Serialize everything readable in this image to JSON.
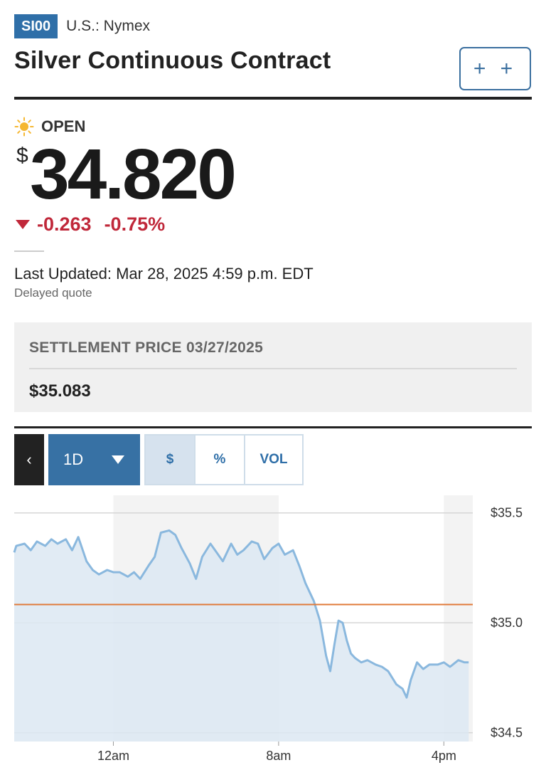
{
  "header": {
    "ticker": "SI00",
    "exchange": "U.S.: Nymex",
    "title": "Silver Continuous Contract",
    "watch_label": "+ +"
  },
  "quote": {
    "status": "OPEN",
    "status_icon": "sun-icon",
    "currency_symbol": "$",
    "price": "34.820",
    "change": "-0.263",
    "change_percent": "-0.75%",
    "change_direction": "down",
    "last_updated": "Last Updated: Mar 28, 2025 4:59 p.m. EDT",
    "delay_note": "Delayed quote"
  },
  "settlement": {
    "label": "SETTLEMENT PRICE 03/27/2025",
    "value": "$35.083"
  },
  "chart_controls": {
    "back_label": "‹",
    "range_label": "1D",
    "modes": [
      {
        "label": "$",
        "active": true
      },
      {
        "label": "%",
        "active": false
      },
      {
        "label": "VOL",
        "active": false
      }
    ]
  },
  "colors": {
    "accent": "#2f6fa8",
    "down": "#c0283a",
    "line": "#8ab8de",
    "area": "#dce8f2",
    "settlement_line": "#e07a3a"
  },
  "chart_data": {
    "type": "area",
    "title": "",
    "xlabel": "",
    "ylabel": "",
    "x_tick_labels": [
      "12am",
      "8am",
      "4pm"
    ],
    "y_tick_labels": [
      "$35.5",
      "$35.0",
      "$34.5"
    ],
    "ylim": [
      34.46,
      35.58
    ],
    "xlim_hours": [
      -4.8,
      17.4
    ],
    "settlement_reference": 35.083,
    "grid": "horizontal",
    "shaded_session_hours": [
      [
        0,
        8
      ],
      [
        16,
        17.4
      ]
    ],
    "series": [
      {
        "x_hours": [
          -5.0,
          -4.7,
          -4.3,
          -4.0,
          -3.7,
          -3.3,
          -3.0,
          -2.7,
          -2.3,
          -2.0,
          -1.7,
          -1.3,
          -1.0,
          -0.7,
          -0.3,
          0.0,
          0.3,
          0.7,
          1.0,
          1.3,
          1.7,
          2.0,
          2.3,
          2.7,
          3.0,
          3.3,
          3.7,
          4.0,
          4.3,
          4.7,
          5.0,
          5.3,
          5.7,
          6.0,
          6.3,
          6.7,
          7.0,
          7.3,
          7.7,
          8.0,
          8.3,
          8.7,
          9.0,
          9.3,
          9.7,
          10.0,
          10.3,
          10.5,
          10.7,
          10.9,
          11.1,
          11.3,
          11.5,
          11.7,
          12.0,
          12.3,
          12.7,
          13.0,
          13.3,
          13.7,
          14.0,
          14.2,
          14.4,
          14.7,
          15.0,
          15.3,
          15.7,
          16.0,
          16.3,
          16.7,
          17.0,
          17.2
        ],
        "y": [
          35.32,
          35.35,
          35.36,
          35.33,
          35.37,
          35.35,
          35.38,
          35.36,
          35.38,
          35.33,
          35.39,
          35.28,
          35.24,
          35.22,
          35.24,
          35.23,
          35.23,
          35.21,
          35.23,
          35.2,
          35.26,
          35.3,
          35.41,
          35.42,
          35.4,
          35.34,
          35.27,
          35.2,
          35.3,
          35.36,
          35.32,
          35.28,
          35.36,
          35.31,
          35.33,
          35.37,
          35.36,
          35.29,
          35.34,
          35.36,
          35.31,
          35.33,
          35.26,
          35.18,
          35.1,
          35.01,
          34.85,
          34.78,
          34.9,
          35.01,
          35.0,
          34.92,
          34.86,
          34.84,
          34.82,
          34.83,
          34.81,
          34.8,
          34.78,
          34.72,
          34.7,
          34.66,
          34.74,
          34.82,
          34.79,
          34.81,
          34.81,
          34.82,
          34.8,
          34.83,
          34.82,
          34.82
        ]
      }
    ]
  }
}
